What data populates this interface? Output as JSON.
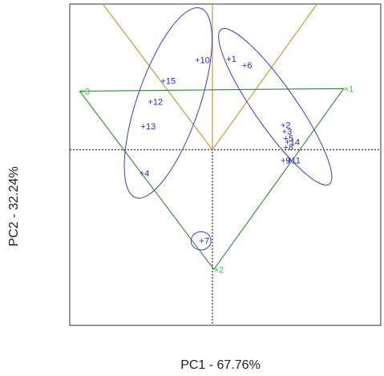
{
  "chart_data": {
    "type": "scatter",
    "title": "",
    "xlabel": "PC1 - 67.76%",
    "ylabel": "PC2 - 32.24%",
    "xlim": [
      -1.0,
      1.18
    ],
    "ylim": [
      -1.35,
      1.12
    ],
    "grid": false,
    "colors": {
      "points": "#2a2ab0",
      "ellipses": "#3a3ad6",
      "triangle": "#2f8a2f",
      "vertex_labels": "#33cc33",
      "y_lines": "#b8a23a",
      "zero_lines": "#000000"
    },
    "points": [
      {
        "label": "1",
        "x": 0.12,
        "y": 0.7
      },
      {
        "label": "6",
        "x": 0.23,
        "y": 0.65
      },
      {
        "label": "10",
        "x": -0.1,
        "y": 0.69
      },
      {
        "label": "15",
        "x": -0.34,
        "y": 0.53
      },
      {
        "label": "12",
        "x": -0.43,
        "y": 0.37
      },
      {
        "label": "13",
        "x": -0.48,
        "y": 0.18
      },
      {
        "label": "4",
        "x": -0.49,
        "y": -0.18
      },
      {
        "label": "2",
        "x": 0.5,
        "y": 0.19
      },
      {
        "label": "3",
        "x": 0.51,
        "y": 0.14
      },
      {
        "label": "5",
        "x": 0.52,
        "y": 0.09
      },
      {
        "label": "14",
        "x": 0.53,
        "y": 0.06
      },
      {
        "label": "8",
        "x": 0.52,
        "y": 0.02
      },
      {
        "label": "9",
        "x": 0.5,
        "y": -0.08
      },
      {
        "label": "11",
        "x": 0.54,
        "y": -0.08
      },
      {
        "label": "7",
        "x": -0.07,
        "y": -0.7
      }
    ],
    "vertices": [
      {
        "label": "1",
        "x": 0.92,
        "y": 0.47
      },
      {
        "label": "2",
        "x": 0.01,
        "y": -0.92
      },
      {
        "label": "3",
        "x": -0.93,
        "y": 0.45
      }
    ],
    "ellipses": [
      {
        "cx": -0.31,
        "cy": 0.36,
        "rx": 0.7,
        "ry": 0.24,
        "angle_deg": 71
      },
      {
        "cx": 0.44,
        "cy": 0.33,
        "rx": 0.66,
        "ry": 0.16,
        "angle_deg": -55
      },
      {
        "cx": -0.08,
        "cy": -0.7,
        "rx": 0.07,
        "ry": 0.07,
        "angle_deg": 0
      }
    ]
  }
}
